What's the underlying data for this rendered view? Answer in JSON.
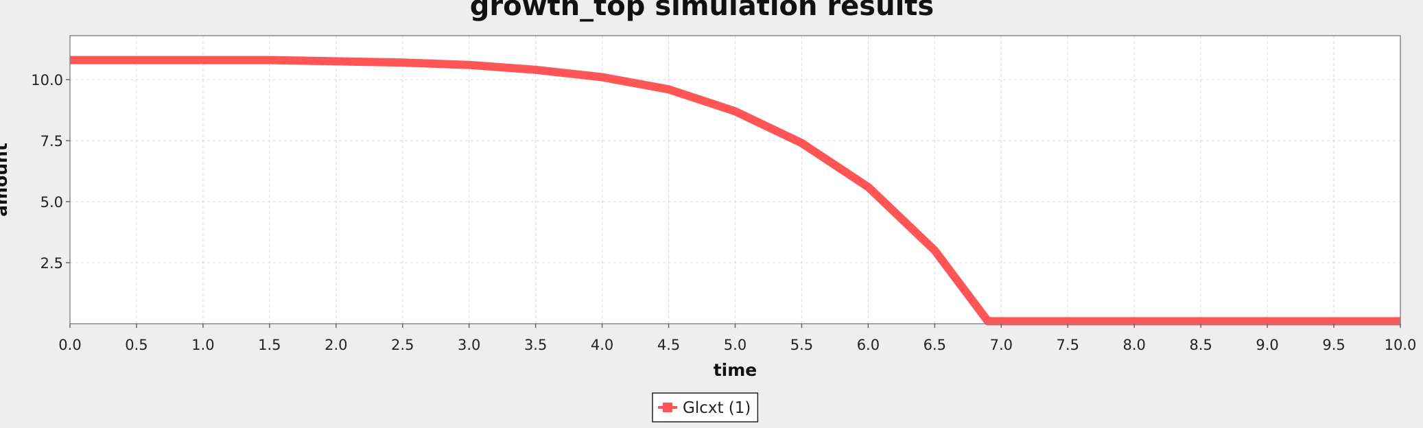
{
  "chart_data": {
    "type": "line",
    "title": "growth_top simulation results",
    "xlabel": "time",
    "ylabel": "amount",
    "xlim": [
      0.0,
      10.0
    ],
    "ylim": [
      0.0,
      11.8
    ],
    "xticks": [
      "0.0",
      "0.5",
      "1.0",
      "1.5",
      "2.0",
      "2.5",
      "3.0",
      "3.5",
      "4.0",
      "4.5",
      "5.0",
      "5.5",
      "6.0",
      "6.5",
      "7.0",
      "7.5",
      "8.0",
      "8.5",
      "9.0",
      "9.5",
      "10.0"
    ],
    "yticks": [
      "2.5",
      "5.0",
      "7.5",
      "10.0"
    ],
    "grid": true,
    "legend": "bottom-center",
    "series": [
      {
        "name": "Glcxt (1)",
        "color": "#ff5555",
        "x": [
          0.0,
          0.5,
          1.0,
          1.5,
          2.0,
          2.5,
          3.0,
          3.5,
          4.0,
          4.5,
          5.0,
          5.5,
          6.0,
          6.5,
          6.9,
          7.0,
          8.0,
          9.0,
          10.0
        ],
        "y": [
          10.8,
          10.8,
          10.8,
          10.8,
          10.75,
          10.7,
          10.6,
          10.4,
          10.1,
          9.6,
          8.7,
          7.4,
          5.6,
          3.0,
          0.1,
          0.1,
          0.1,
          0.1,
          0.1
        ]
      }
    ]
  }
}
